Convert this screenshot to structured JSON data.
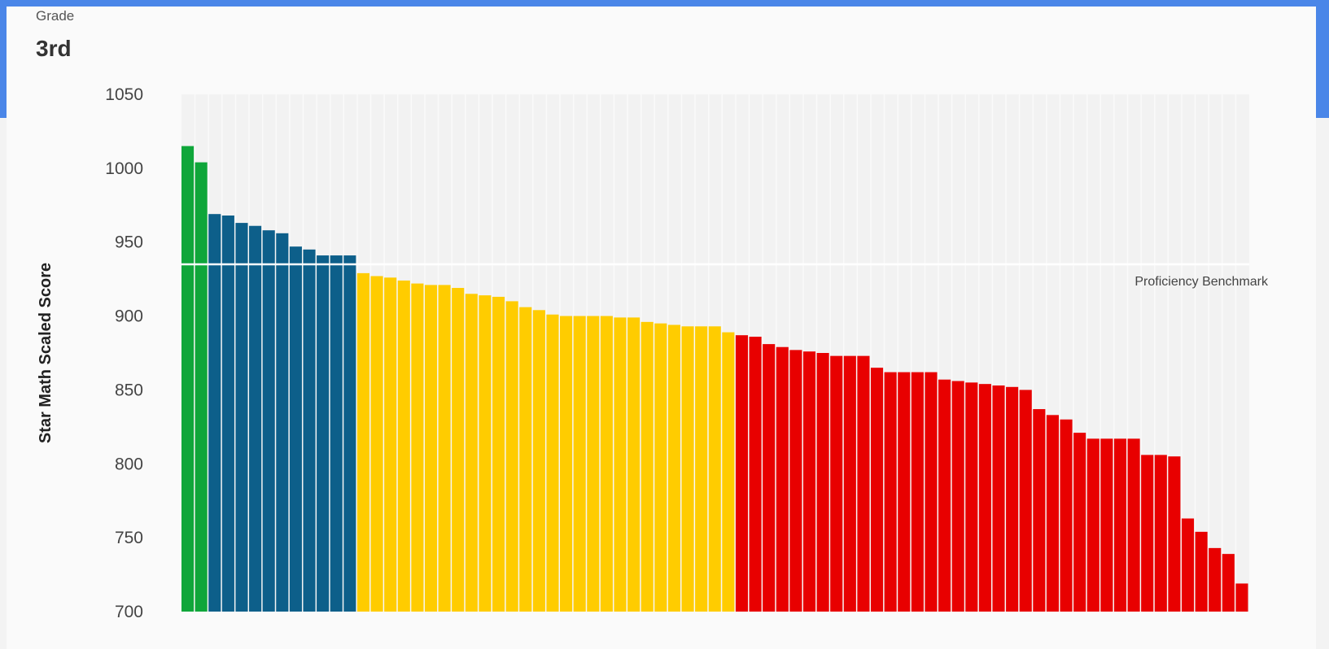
{
  "header": {
    "grade_label": "Grade",
    "grade_value": "3rd"
  },
  "chart_data": {
    "type": "bar",
    "title": "",
    "xlabel": "",
    "ylabel": "Star Math Scaled Score",
    "ylim": [
      700,
      1050
    ],
    "yticks": [
      700,
      750,
      800,
      850,
      900,
      950,
      1000,
      1050
    ],
    "grid": true,
    "benchmark": {
      "label": "Proficiency Benchmark",
      "value": 935
    },
    "colors": {
      "green": "#0fa63a",
      "blue": "#0d5f8a",
      "yellow": "#ffcc00",
      "red": "#e80000",
      "plot_bg": "#f2f2f2"
    },
    "values": [
      1015,
      1004,
      969,
      968,
      963,
      961,
      958,
      956,
      947,
      945,
      941,
      941,
      941,
      929,
      927,
      926,
      924,
      922,
      921,
      921,
      919,
      915,
      914,
      913,
      910,
      906,
      904,
      901,
      900,
      900,
      900,
      900,
      899,
      899,
      896,
      895,
      894,
      893,
      893,
      893,
      889,
      887,
      886,
      881,
      879,
      877,
      876,
      875,
      873,
      873,
      873,
      865,
      862,
      862,
      862,
      862,
      857,
      856,
      855,
      854,
      853,
      852,
      850,
      837,
      833,
      830,
      821,
      817,
      817,
      817,
      817,
      806,
      806,
      805,
      763,
      754,
      743,
      739,
      719
    ],
    "bar_colors": [
      "green",
      "green",
      "blue",
      "blue",
      "blue",
      "blue",
      "blue",
      "blue",
      "blue",
      "blue",
      "blue",
      "blue",
      "blue",
      "yellow",
      "yellow",
      "yellow",
      "yellow",
      "yellow",
      "yellow",
      "yellow",
      "yellow",
      "yellow",
      "yellow",
      "yellow",
      "yellow",
      "yellow",
      "yellow",
      "yellow",
      "yellow",
      "yellow",
      "yellow",
      "yellow",
      "yellow",
      "yellow",
      "yellow",
      "yellow",
      "yellow",
      "yellow",
      "yellow",
      "yellow",
      "yellow",
      "red",
      "red",
      "red",
      "red",
      "red",
      "red",
      "red",
      "red",
      "red",
      "red",
      "red",
      "red",
      "red",
      "red",
      "red",
      "red",
      "red",
      "red",
      "red",
      "red",
      "red",
      "red",
      "red",
      "red",
      "red",
      "red",
      "red",
      "red",
      "red",
      "red",
      "red",
      "red",
      "red",
      "red",
      "red",
      "red",
      "red",
      "red"
    ]
  }
}
